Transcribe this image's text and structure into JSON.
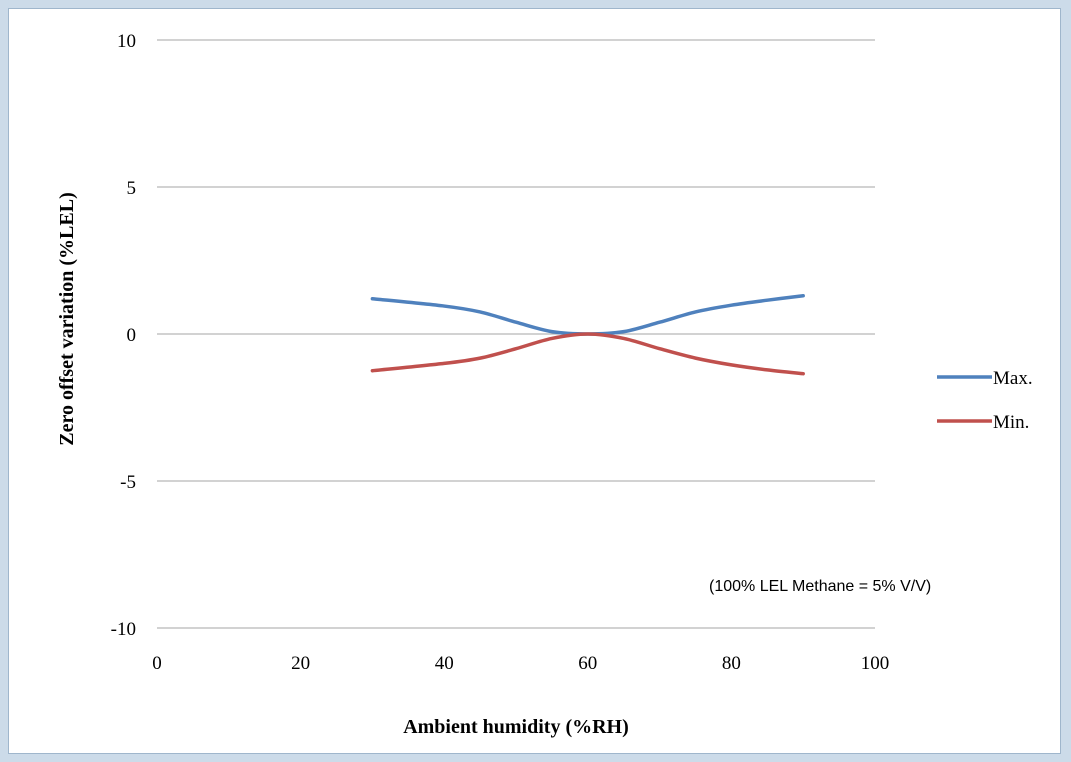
{
  "chart_data": {
    "type": "line",
    "xlabel": "Ambient humidity (%RH)",
    "ylabel": "Zero offset variation (%LEL)",
    "annotation": "(100% LEL Methane = 5% V/V)",
    "xlim": [
      0,
      100
    ],
    "ylim": [
      -10,
      10
    ],
    "x_ticks": [
      "0",
      "20",
      "40",
      "60",
      "80",
      "100"
    ],
    "y_ticks": [
      "10",
      "5",
      "0",
      "-5",
      "-10"
    ],
    "grid": "horizontal",
    "legend_position": "right",
    "series": [
      {
        "name": "Max.",
        "color": "#4f81bd",
        "x": [
          30,
          40,
          45,
          50,
          55,
          60,
          65,
          70,
          75,
          80,
          85,
          90
        ],
        "y": [
          1.2,
          0.95,
          0.75,
          0.4,
          0.08,
          0.0,
          0.08,
          0.4,
          0.75,
          0.98,
          1.15,
          1.3
        ]
      },
      {
        "name": "Min.",
        "color": "#c0504d",
        "x": [
          30,
          40,
          45,
          50,
          55,
          60,
          65,
          70,
          75,
          80,
          85,
          90
        ],
        "y": [
          -1.25,
          -1.0,
          -0.82,
          -0.5,
          -0.15,
          0.0,
          -0.15,
          -0.5,
          -0.82,
          -1.05,
          -1.22,
          -1.35
        ]
      }
    ]
  }
}
